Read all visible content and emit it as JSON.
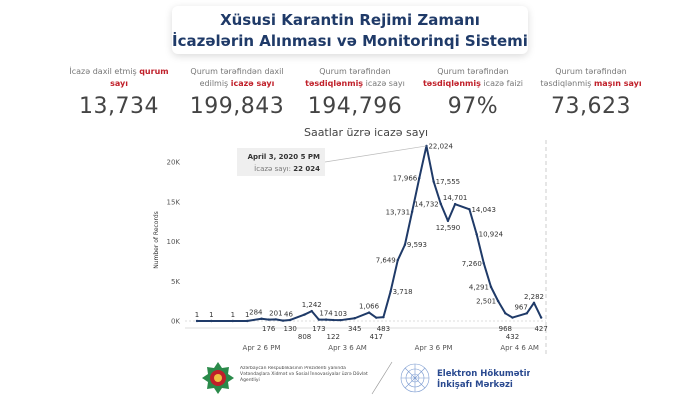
{
  "header": {
    "title_line1": "Xüsusi Karantin Rejimi Zamanı",
    "title_line2": "İcazələrin Alınması və Monitorinqi Sistemi"
  },
  "stats": [
    {
      "label_parts": [
        "İcazə daxil etmiş ",
        "qurum sayı",
        ""
      ],
      "value": "13,734"
    },
    {
      "label_parts": [
        "Qurum tərəfindən daxil edilmiş ",
        "icazə sayı",
        ""
      ],
      "value": "199,843"
    },
    {
      "label_parts": [
        "Qurum tərəfindən ",
        "təsdiqlənmiş",
        " icazə sayı"
      ],
      "value": "194,796"
    },
    {
      "label_parts": [
        "Qurum tərəfindən ",
        "təsdiqlənmiş",
        " icazə faizi"
      ],
      "value": "97%"
    },
    {
      "label_parts": [
        "Qurum tərəfindən təsdiqlənmiş ",
        "maşın sayı",
        ""
      ],
      "value": "73,623"
    }
  ],
  "accent_color": "#c0202a",
  "line_color": "#1f3a68",
  "chart_data": {
    "type": "line",
    "title": "Saatlar üzrə icazə sayı",
    "ylabel": "Number of Records",
    "xlabel": "",
    "ylim": [
      0,
      22500
    ],
    "yticks": [
      {
        "v": 0,
        "label": "0K"
      },
      {
        "v": 5000,
        "label": "5K"
      },
      {
        "v": 10000,
        "label": "10K"
      },
      {
        "v": 15000,
        "label": "15K"
      },
      {
        "v": 20000,
        "label": "20K"
      }
    ],
    "xticks": [
      {
        "t": "2020-04-02 18:00",
        "label": "Apr 2 6 PM"
      },
      {
        "t": "2020-04-03 06:00",
        "label": "Apr 3 6 AM"
      },
      {
        "t": "2020-04-03 18:00",
        "label": "Apr 3 6 PM"
      },
      {
        "t": "2020-04-04 06:00",
        "label": "Apr 4 6 AM"
      }
    ],
    "grid": false,
    "points": [
      {
        "t": "2020-04-02 09:00",
        "y": 1,
        "label": "1"
      },
      {
        "t": "2020-04-02 11:00",
        "y": 1,
        "label": "1"
      },
      {
        "t": "2020-04-02 14:00",
        "y": 1,
        "label": "1"
      },
      {
        "t": "2020-04-02 16:00",
        "y": 1,
        "label": "1"
      },
      {
        "t": "2020-04-02 18:00",
        "y": 284,
        "label": "284"
      },
      {
        "t": "2020-04-02 19:00",
        "y": 176,
        "label": "176"
      },
      {
        "t": "2020-04-02 20:00",
        "y": 201,
        "label": "201"
      },
      {
        "t": "2020-04-02 21:00",
        "y": 46,
        "label": "46"
      },
      {
        "t": "2020-04-02 22:00",
        "y": 130,
        "label": "130"
      },
      {
        "t": "2020-04-03 00:00",
        "y": 808,
        "label": "808"
      },
      {
        "t": "2020-04-03 01:00",
        "y": 1242,
        "label": "1,242"
      },
      {
        "t": "2020-04-03 02:00",
        "y": 173,
        "label": "173"
      },
      {
        "t": "2020-04-03 03:00",
        "y": 174,
        "label": "174"
      },
      {
        "t": "2020-04-03 04:00",
        "y": 122,
        "label": "122"
      },
      {
        "t": "2020-04-03 05:00",
        "y": 103,
        "label": "103"
      },
      {
        "t": "2020-04-03 07:00",
        "y": 345,
        "label": "345"
      },
      {
        "t": "2020-04-03 09:00",
        "y": 1066,
        "label": "1,066"
      },
      {
        "t": "2020-04-03 10:00",
        "y": 417,
        "label": "417"
      },
      {
        "t": "2020-04-03 11:00",
        "y": 483,
        "label": "483"
      },
      {
        "t": "2020-04-03 12:00",
        "y": 3718,
        "label": "3,718"
      },
      {
        "t": "2020-04-03 13:00",
        "y": 7649,
        "label": "7,649"
      },
      {
        "t": "2020-04-03 14:00",
        "y": 9593,
        "label": "9,593"
      },
      {
        "t": "2020-04-03 15:00",
        "y": 13731,
        "label": "13,731"
      },
      {
        "t": "2020-04-03 16:00",
        "y": 17966,
        "label": "17,966"
      },
      {
        "t": "2020-04-03 17:00",
        "y": 22024,
        "label": "22,024"
      },
      {
        "t": "2020-04-03 18:00",
        "y": 17555,
        "label": "17,555"
      },
      {
        "t": "2020-04-03 19:00",
        "y": 14732,
        "label": "14,732"
      },
      {
        "t": "2020-04-03 20:00",
        "y": 12590,
        "label": "12,590"
      },
      {
        "t": "2020-04-03 21:00",
        "y": 14701,
        "label": "14,701"
      },
      {
        "t": "2020-04-03 23:00",
        "y": 14043,
        "label": "14,043"
      },
      {
        "t": "2020-04-04 00:00",
        "y": 10924,
        "label": "10,924"
      },
      {
        "t": "2020-04-04 01:00",
        "y": 7260,
        "label": "7,260"
      },
      {
        "t": "2020-04-04 02:00",
        "y": 4291,
        "label": "4,291"
      },
      {
        "t": "2020-04-04 03:00",
        "y": 2501,
        "label": "2,501"
      },
      {
        "t": "2020-04-04 04:00",
        "y": 968,
        "label": "968"
      },
      {
        "t": "2020-04-04 05:00",
        "y": 432,
        "label": "432"
      },
      {
        "t": "2020-04-04 07:00",
        "y": 967,
        "label": "967"
      },
      {
        "t": "2020-04-04 08:00",
        "y": 2282,
        "label": "2,282"
      },
      {
        "t": "2020-04-04 09:00",
        "y": 427,
        "label": "427"
      }
    ],
    "tooltip": {
      "title": "April 3, 2020 5 PM",
      "label": "İcazə sayı:",
      "value": "22 024"
    }
  },
  "footer": {
    "left_org": "Azərbaycan Respublikasının Prezidenti yanında Vətəndaşlara Xidmət və Sosial İnnovasiyalar üzrə Dövlət Agentliyi",
    "right_org_line1": "Elektron Hökumətin",
    "right_org_line2": "İnkişafı Mərkəzi"
  }
}
